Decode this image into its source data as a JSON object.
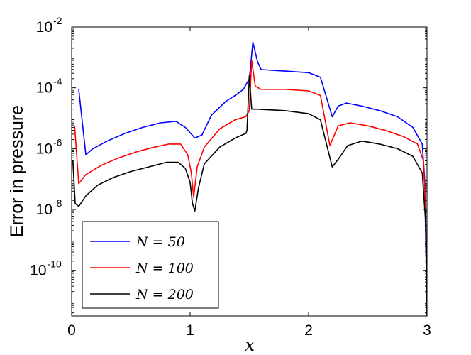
{
  "chart_data": {
    "type": "line",
    "title": "",
    "xlabel": "x",
    "ylabel": "Error in pressure",
    "xlim": [
      0,
      3
    ],
    "ylim_log10": [
      -11.5,
      -2
    ],
    "yscale": "log",
    "grid": false,
    "legend_position": "bottom-left",
    "xticks": [
      {
        "value": 0,
        "label": "0"
      },
      {
        "value": 1,
        "label": "1"
      },
      {
        "value": 2,
        "label": "2"
      },
      {
        "value": 3,
        "label": "3"
      }
    ],
    "yticks": [
      {
        "exp": -2,
        "base": "10",
        "sup": "-2"
      },
      {
        "exp": -4,
        "base": "10",
        "sup": "-4"
      },
      {
        "exp": -6,
        "base": "10",
        "sup": "-6"
      },
      {
        "exp": -8,
        "base": "10",
        "sup": "-8"
      },
      {
        "exp": -10,
        "base": "10",
        "sup": "-10"
      }
    ],
    "series": [
      {
        "name": "N = 50",
        "color": "#0000ff",
        "points": [
          [
            0.06,
            -4.05
          ],
          [
            0.12,
            -6.2
          ],
          [
            0.18,
            -6.0
          ],
          [
            0.3,
            -5.75
          ],
          [
            0.45,
            -5.5
          ],
          [
            0.6,
            -5.3
          ],
          [
            0.75,
            -5.15
          ],
          [
            0.88,
            -5.1
          ],
          [
            0.96,
            -5.3
          ],
          [
            1.04,
            -5.65
          ],
          [
            1.1,
            -5.55
          ],
          [
            1.18,
            -4.9
          ],
          [
            1.3,
            -4.45
          ],
          [
            1.4,
            -4.2
          ],
          [
            1.45,
            -4.05
          ],
          [
            1.5,
            -3.7
          ],
          [
            1.53,
            -2.5
          ],
          [
            1.57,
            -3.15
          ],
          [
            1.6,
            -3.4
          ],
          [
            1.8,
            -3.45
          ],
          [
            2.0,
            -3.5
          ],
          [
            2.1,
            -3.65
          ],
          [
            2.2,
            -4.95
          ],
          [
            2.25,
            -4.6
          ],
          [
            2.32,
            -4.5
          ],
          [
            2.45,
            -4.6
          ],
          [
            2.6,
            -4.75
          ],
          [
            2.75,
            -4.95
          ],
          [
            2.88,
            -5.3
          ],
          [
            2.96,
            -5.85
          ],
          [
            2.98,
            -7.0
          ],
          [
            3.0,
            -11.5
          ]
        ]
      },
      {
        "name": "N = 100",
        "color": "#ff0000",
        "points": [
          [
            0.025,
            -5.25
          ],
          [
            0.06,
            -7.15
          ],
          [
            0.12,
            -6.85
          ],
          [
            0.25,
            -6.55
          ],
          [
            0.4,
            -6.3
          ],
          [
            0.55,
            -6.1
          ],
          [
            0.7,
            -5.95
          ],
          [
            0.82,
            -5.85
          ],
          [
            0.92,
            -5.85
          ],
          [
            0.98,
            -6.2
          ],
          [
            1.01,
            -6.8
          ],
          [
            1.03,
            -7.6
          ],
          [
            1.06,
            -6.6
          ],
          [
            1.12,
            -5.95
          ],
          [
            1.25,
            -5.35
          ],
          [
            1.38,
            -5.05
          ],
          [
            1.47,
            -4.95
          ],
          [
            1.5,
            -4.75
          ],
          [
            1.52,
            -3.1
          ],
          [
            1.55,
            -3.95
          ],
          [
            1.6,
            -4.05
          ],
          [
            1.8,
            -4.05
          ],
          [
            2.0,
            -4.1
          ],
          [
            2.1,
            -4.25
          ],
          [
            2.18,
            -5.9
          ],
          [
            2.25,
            -5.25
          ],
          [
            2.35,
            -5.15
          ],
          [
            2.5,
            -5.25
          ],
          [
            2.65,
            -5.4
          ],
          [
            2.8,
            -5.6
          ],
          [
            2.92,
            -5.85
          ],
          [
            2.97,
            -6.4
          ],
          [
            2.99,
            -8.3
          ],
          [
            3.0,
            -11.5
          ]
        ]
      },
      {
        "name": "N = 200",
        "color": "#000000",
        "points": [
          [
            0.01,
            -6.4
          ],
          [
            0.03,
            -7.8
          ],
          [
            0.06,
            -7.9
          ],
          [
            0.12,
            -7.55
          ],
          [
            0.22,
            -7.2
          ],
          [
            0.35,
            -6.95
          ],
          [
            0.5,
            -6.75
          ],
          [
            0.65,
            -6.6
          ],
          [
            0.8,
            -6.45
          ],
          [
            0.9,
            -6.45
          ],
          [
            0.96,
            -6.65
          ],
          [
            1.0,
            -7.1
          ],
          [
            1.02,
            -7.8
          ],
          [
            1.04,
            -8.05
          ],
          [
            1.07,
            -7.3
          ],
          [
            1.12,
            -6.5
          ],
          [
            1.25,
            -5.95
          ],
          [
            1.38,
            -5.65
          ],
          [
            1.47,
            -5.5
          ],
          [
            1.48,
            -5.4
          ],
          [
            1.5,
            -3.6
          ],
          [
            1.52,
            -4.7
          ],
          [
            1.56,
            -4.7
          ],
          [
            1.8,
            -4.75
          ],
          [
            2.0,
            -4.85
          ],
          [
            2.1,
            -5.05
          ],
          [
            2.18,
            -6.3
          ],
          [
            2.2,
            -6.6
          ],
          [
            2.26,
            -6.3
          ],
          [
            2.33,
            -5.9
          ],
          [
            2.45,
            -5.75
          ],
          [
            2.6,
            -5.85
          ],
          [
            2.75,
            -6.0
          ],
          [
            2.88,
            -6.25
          ],
          [
            2.96,
            -6.8
          ],
          [
            2.99,
            -8.5
          ],
          [
            3.0,
            -11.5
          ]
        ]
      }
    ]
  }
}
